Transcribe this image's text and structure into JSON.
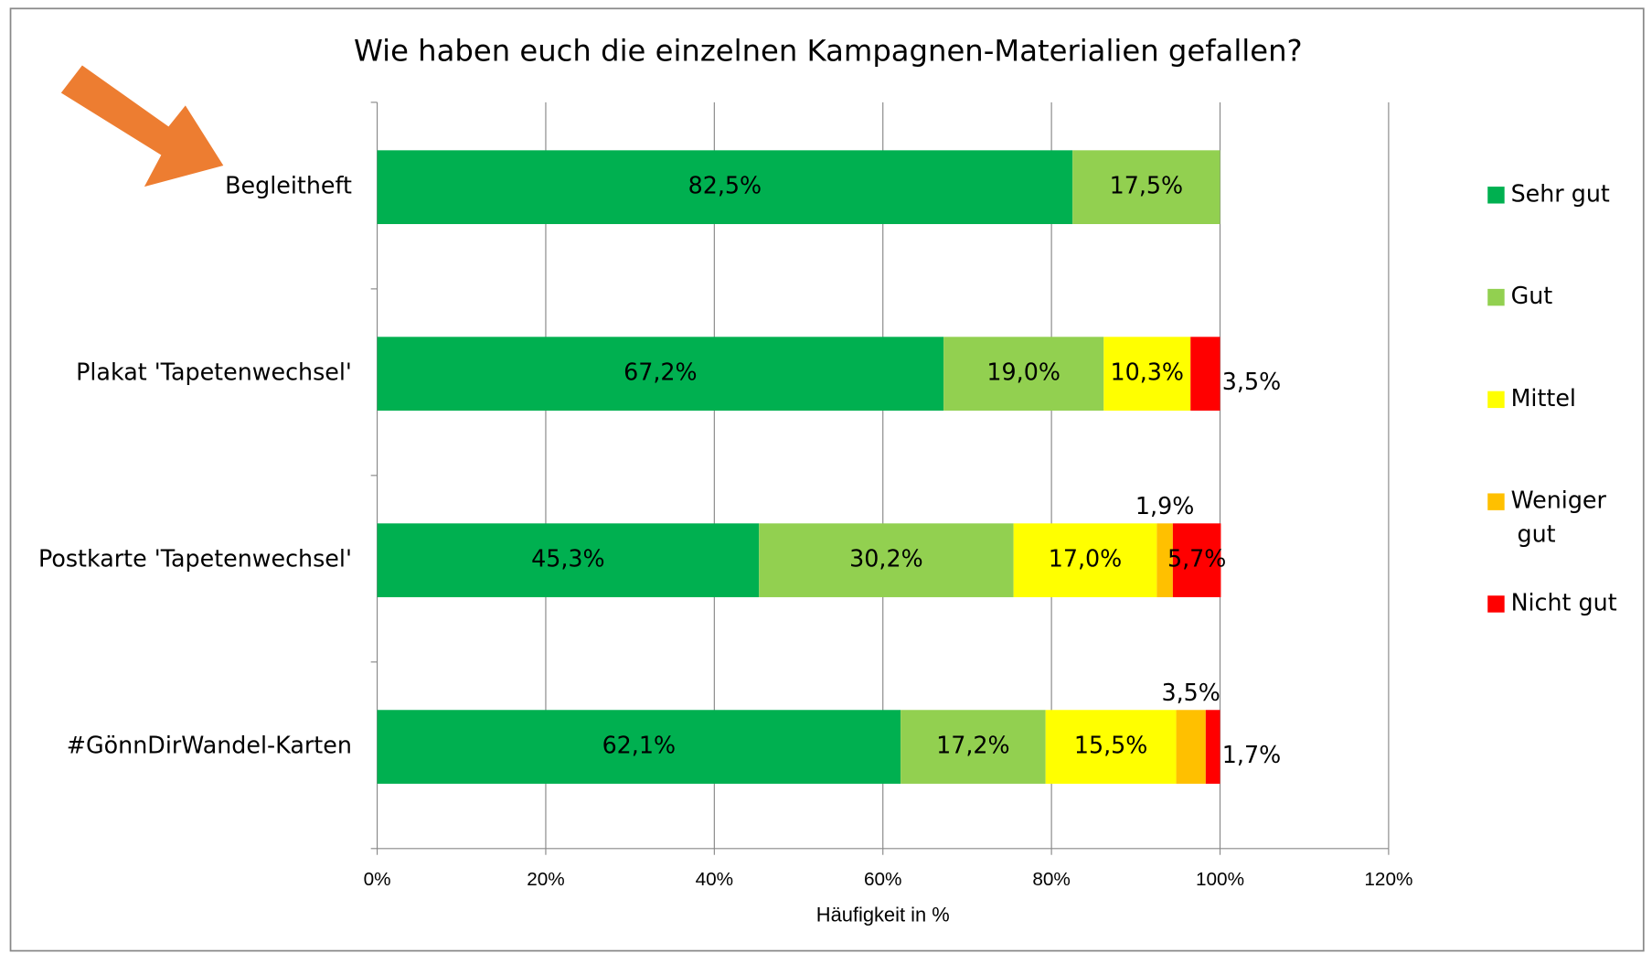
{
  "chart_data": {
    "type": "stacked-bar-horizontal",
    "title": "Wie haben euch die einzelnen Kampagnen-Materialien gefallen?",
    "x_label": "Häufigkeit in %",
    "categories": [
      "Begleitheft",
      "Plakat 'Tapetenwechsel'",
      "Postkarte 'Tapetenwechsel'",
      "#GönnDirWandel-Karten"
    ],
    "series": [
      {
        "name": "Sehr gut",
        "color": "#00b050",
        "values": [
          82.5,
          67.2,
          45.3,
          62.1
        ],
        "value_labels": [
          "82,5%",
          "67,2%",
          "45,3%",
          "62,1%"
        ]
      },
      {
        "name": "Gut",
        "color": "#92d050",
        "values": [
          17.5,
          19.0,
          30.2,
          17.2
        ],
        "value_labels": [
          "17,5%",
          "19,0%",
          "30,2%",
          "17,2%"
        ]
      },
      {
        "name": "Mittel",
        "color": "#ffff00",
        "values": [
          null,
          10.3,
          17.0,
          15.5
        ],
        "value_labels": [
          null,
          "10,3%",
          "17,0%",
          "15,5%"
        ]
      },
      {
        "name": "Weniger gut",
        "color": "#ffc000",
        "values": [
          null,
          null,
          1.9,
          3.5
        ],
        "value_labels": [
          null,
          null,
          "1,9%",
          "3,5%"
        ]
      },
      {
        "name": "Nicht gut",
        "color": "#ff0000",
        "values": [
          null,
          3.5,
          5.7,
          1.7
        ],
        "value_labels": [
          null,
          "3,5%",
          "5,7%",
          "1,7%"
        ]
      }
    ],
    "xlim": [
      0,
      120
    ],
    "xticks": [
      {
        "value": 0,
        "label": "0%"
      },
      {
        "value": 20,
        "label": "20%"
      },
      {
        "value": 40,
        "label": "40%"
      },
      {
        "value": 60,
        "label": "60%"
      },
      {
        "value": 80,
        "label": "80%"
      },
      {
        "value": 100,
        "label": "100%"
      },
      {
        "value": 120,
        "label": "120%"
      }
    ],
    "grid": true,
    "legend": "right"
  }
}
